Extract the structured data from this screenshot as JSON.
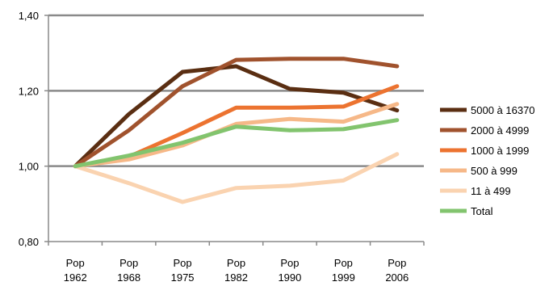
{
  "chart_data": {
    "type": "line",
    "categories": [
      [
        "Pop",
        "1962"
      ],
      [
        "Pop",
        "1968"
      ],
      [
        "Pop",
        "1975"
      ],
      [
        "Pop",
        "1982"
      ],
      [
        "Pop",
        "1990"
      ],
      [
        "Pop",
        "1999"
      ],
      [
        "Pop",
        "2006"
      ]
    ],
    "ylim": [
      0.8,
      1.4
    ],
    "yticks": [
      0.8,
      1.0,
      1.2,
      1.4
    ],
    "ytick_labels": [
      "0,80",
      "1,00",
      "1,20",
      "1,40"
    ],
    "grid": "horizontal",
    "legend_position": "right",
    "series": [
      {
        "name": "5000 à 16370",
        "color": "#5a2e12",
        "values": [
          1.0,
          1.138,
          1.25,
          1.265,
          1.205,
          1.195,
          1.148
        ]
      },
      {
        "name": "2000 à 4999",
        "color": "#a0522d",
        "values": [
          1.0,
          1.095,
          1.212,
          1.282,
          1.285,
          1.285,
          1.265
        ]
      },
      {
        "name": "1000 à 1999",
        "color": "#ec7330",
        "values": [
          1.0,
          1.025,
          1.088,
          1.155,
          1.155,
          1.158,
          1.212
        ]
      },
      {
        "name": "500 à 999",
        "color": "#f6b888",
        "values": [
          1.0,
          1.018,
          1.055,
          1.112,
          1.125,
          1.118,
          1.165
        ]
      },
      {
        "name": "11 à 499",
        "color": "#fad3b0",
        "values": [
          1.0,
          0.955,
          0.905,
          0.942,
          0.948,
          0.962,
          1.032
        ]
      },
      {
        "name": "Total",
        "color": "#82c46e",
        "values": [
          1.0,
          1.028,
          1.062,
          1.105,
          1.095,
          1.098,
          1.122
        ]
      }
    ]
  }
}
